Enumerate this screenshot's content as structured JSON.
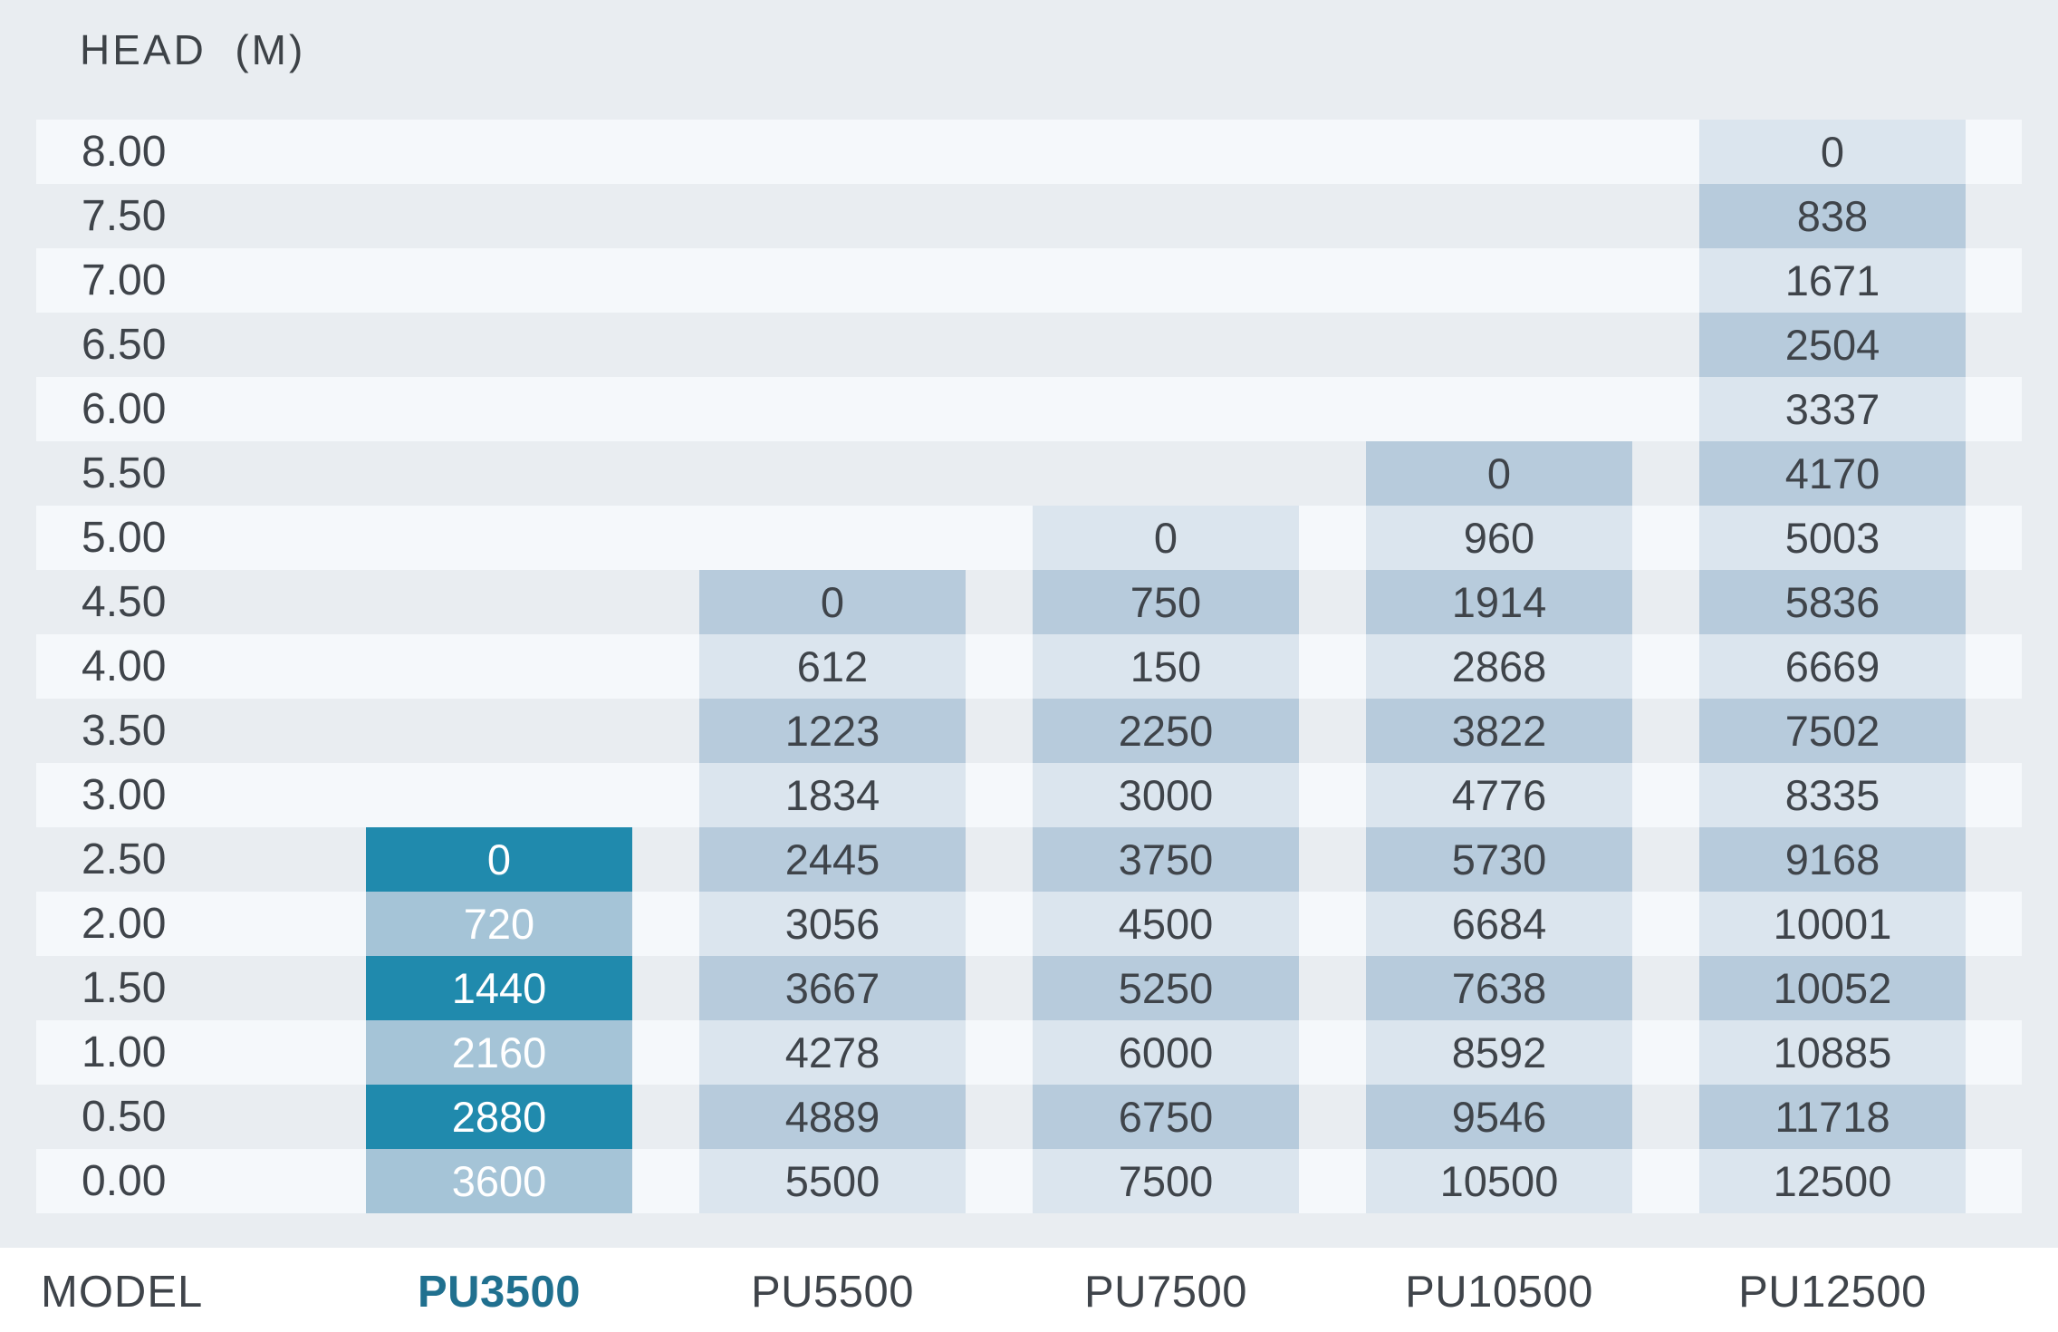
{
  "header": {
    "title": "HEAD  (M)"
  },
  "footer": {
    "model_label": "MODEL"
  },
  "colors": {
    "page_bg": "#e9edf1",
    "row_stripe_light": "#f5f8fb",
    "cell_light": "#dbe5ee",
    "cell_dark": "#b7cbdc",
    "highlight_cell_strong": "#208aad",
    "highlight_cell_soft": "#a5c4d7",
    "value_text": "#3f444a",
    "highlight_value_text": "#ffffff",
    "highlight_model_text": "#20708f",
    "footer_bg": "#ffffff"
  },
  "chart_data": {
    "type": "table",
    "title": "HEAD (M)",
    "ylabel": "HEAD (M)",
    "xlabel": "MODEL",
    "head_values_m": [
      "8.00",
      "7.50",
      "7.00",
      "6.50",
      "6.00",
      "5.50",
      "5.00",
      "4.50",
      "4.00",
      "3.50",
      "3.00",
      "2.50",
      "2.00",
      "1.50",
      "1.00",
      "0.50",
      "0.00"
    ],
    "highlighted_model": "PU3500",
    "series": [
      {
        "name": "PU3500",
        "values": [
          null,
          null,
          null,
          null,
          null,
          null,
          null,
          null,
          null,
          null,
          null,
          0,
          720,
          1440,
          2160,
          2880,
          3600
        ]
      },
      {
        "name": "PU5500",
        "values": [
          null,
          null,
          null,
          null,
          null,
          null,
          null,
          0,
          612,
          1223,
          1834,
          2445,
          3056,
          3667,
          4278,
          4889,
          5500
        ]
      },
      {
        "name": "PU7500",
        "values": [
          null,
          null,
          null,
          null,
          null,
          null,
          0,
          750,
          150,
          2250,
          3000,
          3750,
          4500,
          5250,
          6000,
          6750,
          7500
        ]
      },
      {
        "name": "PU10500",
        "values": [
          null,
          null,
          null,
          null,
          null,
          0,
          960,
          1914,
          2868,
          3822,
          4776,
          5730,
          6684,
          7638,
          8592,
          9546,
          10500
        ]
      },
      {
        "name": "PU12500",
        "values": [
          0,
          838,
          1671,
          2504,
          3337,
          4170,
          5003,
          5836,
          6669,
          7502,
          8335,
          9168,
          10001,
          10052,
          10885,
          11718,
          12500
        ]
      }
    ]
  }
}
